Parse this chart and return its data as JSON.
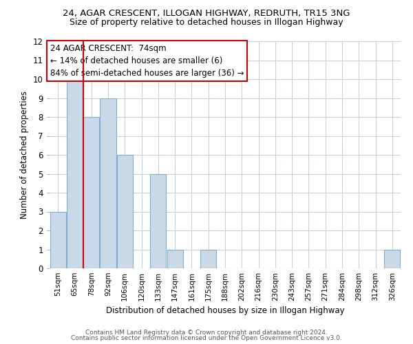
{
  "title_line1": "24, AGAR CRESCENT, ILLOGAN HIGHWAY, REDRUTH, TR15 3NG",
  "title_line2": "Size of property relative to detached houses in Illogan Highway",
  "xlabel": "Distribution of detached houses by size in Illogan Highway",
  "ylabel": "Number of detached properties",
  "footer_line1": "Contains HM Land Registry data © Crown copyright and database right 2024.",
  "footer_line2": "Contains public sector information licensed under the Open Government Licence v3.0.",
  "categories": [
    "51sqm",
    "65sqm",
    "78sqm",
    "92sqm",
    "106sqm",
    "120sqm",
    "133sqm",
    "147sqm",
    "161sqm",
    "175sqm",
    "188sqm",
    "202sqm",
    "216sqm",
    "230sqm",
    "243sqm",
    "257sqm",
    "271sqm",
    "284sqm",
    "298sqm",
    "312sqm",
    "326sqm"
  ],
  "values": [
    3,
    10,
    8,
    9,
    6,
    0,
    5,
    1,
    0,
    1,
    0,
    0,
    0,
    0,
    0,
    0,
    0,
    0,
    0,
    0,
    1
  ],
  "bar_color": "#c9d9e8",
  "bar_edge_color": "#7bafd4",
  "red_line_index": 1.5,
  "red_line_color": "#cc0000",
  "ylim": [
    0,
    12
  ],
  "yticks": [
    0,
    1,
    2,
    3,
    4,
    5,
    6,
    7,
    8,
    9,
    10,
    11,
    12
  ],
  "annotation_title": "24 AGAR CRESCENT:  74sqm",
  "annotation_line1": "← 14% of detached houses are smaller (6)",
  "annotation_line2": "84% of semi-detached houses are larger (36) →",
  "annotation_box_color": "#cc0000",
  "annotation_text_color": "#000000",
  "grid_color": "#c8cdd8",
  "background_color": "#ffffff",
  "title1_fontsize": 9.5,
  "title2_fontsize": 9,
  "annotation_fontsize": 8.5,
  "ylabel_fontsize": 8.5,
  "xlabel_fontsize": 8.5,
  "footer_fontsize": 6.5,
  "footer_color": "#555555"
}
